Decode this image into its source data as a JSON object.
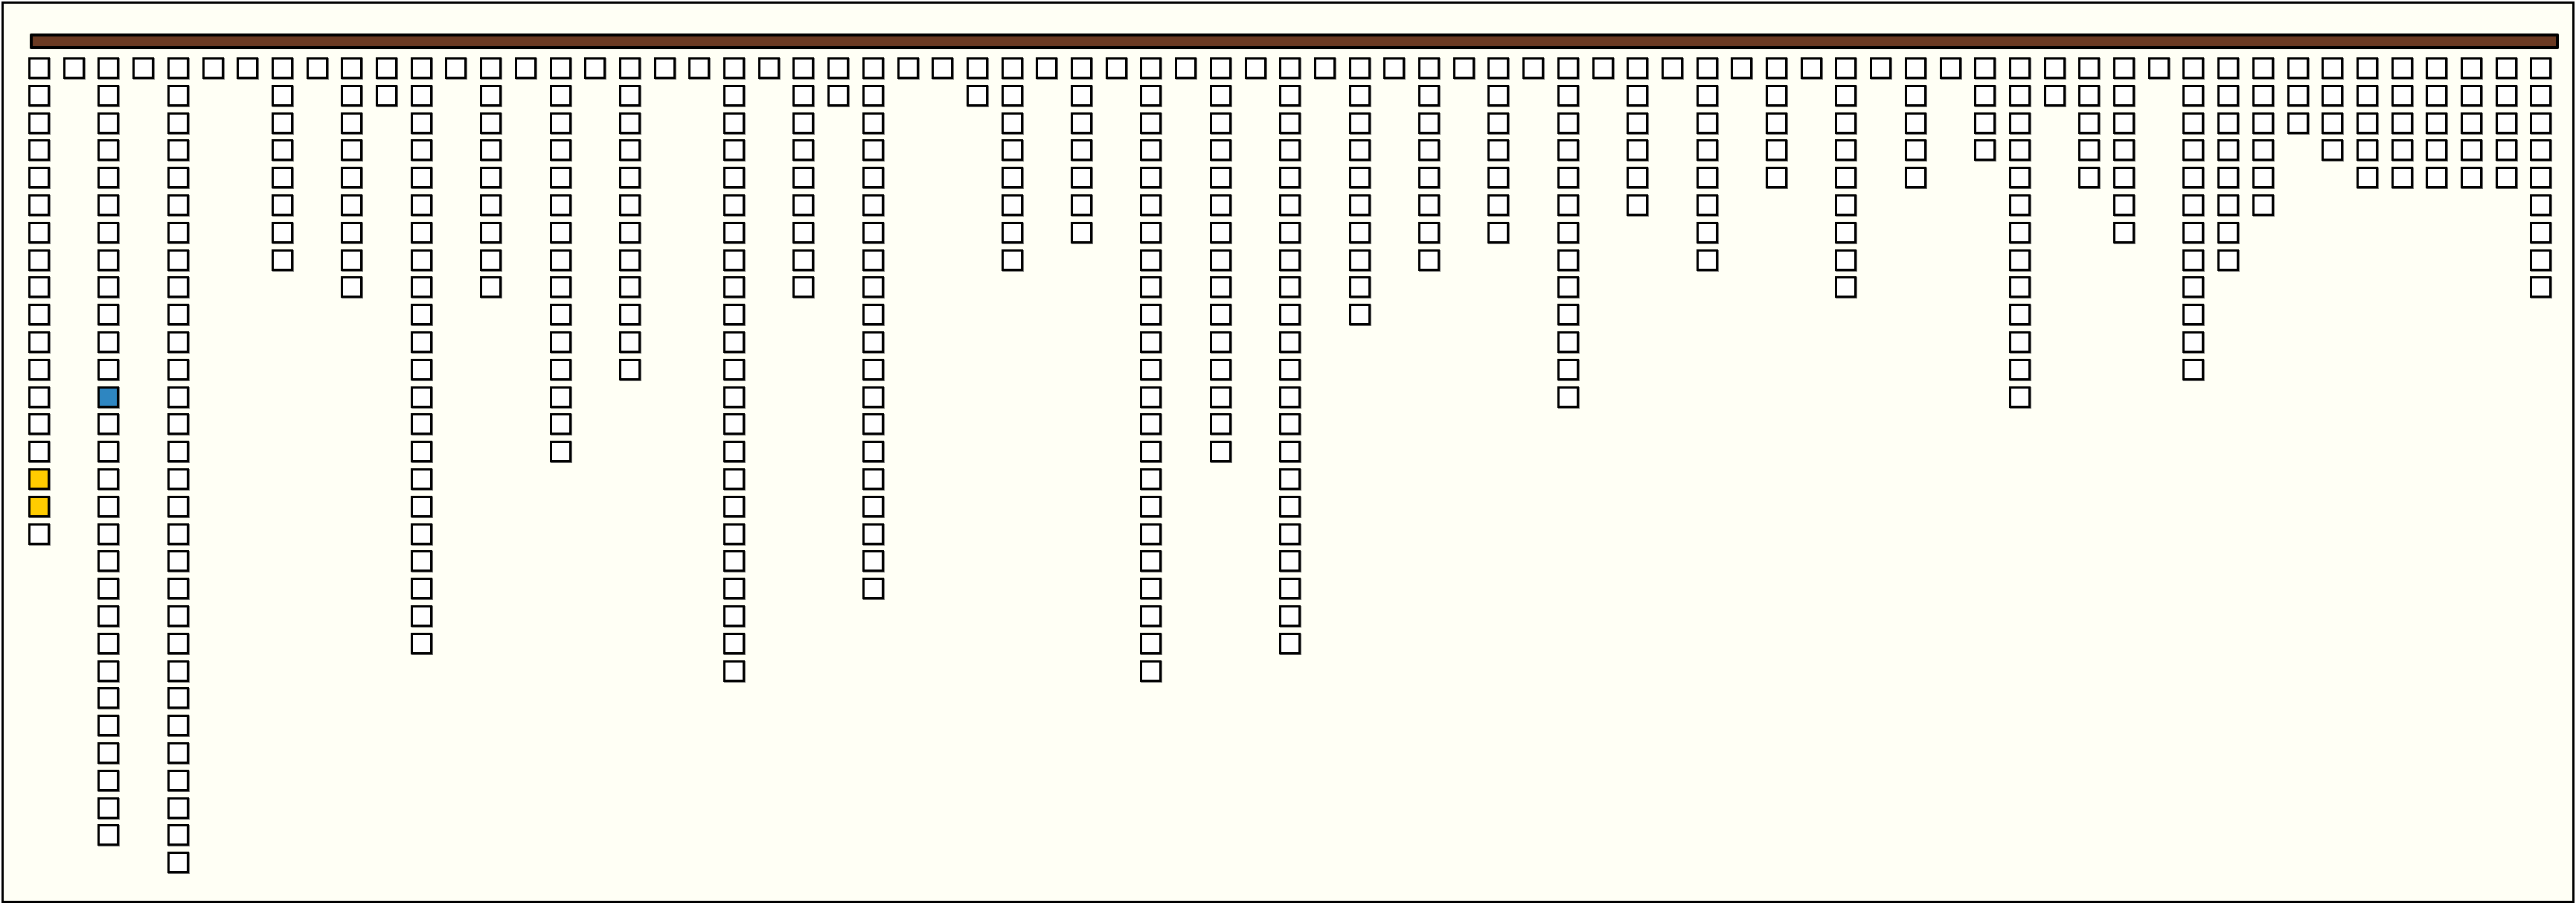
{
  "colors": {
    "background": "#fffff5",
    "bar": "#6b3a22",
    "box": "#ffffff",
    "highlight_blue": "#2e86c1",
    "highlight_yellow": "#ffcc00"
  },
  "columns": [
    18,
    1,
    29,
    1,
    30,
    1,
    1,
    8,
    1,
    9,
    2,
    22,
    1,
    9,
    1,
    15,
    1,
    12,
    1,
    1,
    23,
    1,
    9,
    2,
    20,
    1,
    1,
    2,
    8,
    1,
    7,
    1,
    23,
    1,
    15,
    1,
    22,
    1,
    10,
    1,
    8,
    1,
    7,
    1,
    13,
    1,
    6,
    1,
    8,
    1,
    5,
    1,
    9,
    1,
    5,
    1,
    4,
    13,
    2,
    5,
    7,
    1,
    12,
    8,
    6,
    3,
    4,
    5,
    5,
    5,
    5,
    5,
    9
  ],
  "highlights": [
    {
      "column": 1,
      "row": 16,
      "color": "yellow"
    },
    {
      "column": 1,
      "row": 17,
      "color": "yellow"
    },
    {
      "column": 3,
      "row": 13,
      "color": "blue"
    }
  ]
}
